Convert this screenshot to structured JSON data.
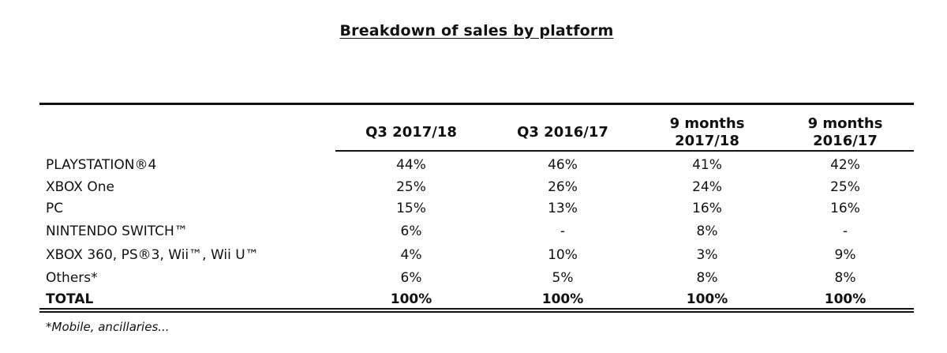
{
  "title": "Breakdown of sales by platform",
  "columns": [
    {
      "line1": "Q3 2017/18",
      "line2": ""
    },
    {
      "line1": "Q3 2016/17",
      "line2": ""
    },
    {
      "line1": "9 months",
      "line2": "2017/18"
    },
    {
      "line1": "9 months",
      "line2": "2016/17"
    }
  ],
  "rows": [
    {
      "label": "PLAYSTATION®4",
      "values": [
        "44%",
        "46%",
        "41%",
        "42%"
      ]
    },
    {
      "label": "XBOX One",
      "values": [
        "25%",
        "26%",
        "24%",
        "25%"
      ]
    },
    {
      "label": "PC",
      "values": [
        "15%",
        "13%",
        "16%",
        "16%"
      ]
    },
    {
      "label": "NINTENDO SWITCH™",
      "values": [
        "6%",
        "-",
        "8%",
        "-"
      ]
    },
    {
      "label": "XBOX 360, PS®3, Wii™, Wii U™",
      "values": [
        "4%",
        "10%",
        "3%",
        "9%"
      ]
    },
    {
      "label": "Others*",
      "values": [
        "6%",
        "5%",
        "8%",
        "8%"
      ]
    }
  ],
  "total": {
    "label": "TOTAL",
    "values": [
      "100%",
      "100%",
      "100%",
      "100%"
    ]
  },
  "footnote": "*Mobile, ancillaries..."
}
